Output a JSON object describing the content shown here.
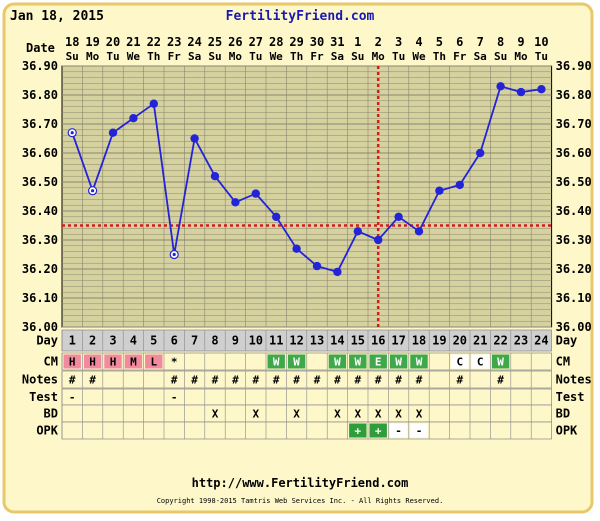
{
  "header": {
    "date": "Jan 18, 2015",
    "site": "FertilityFriend.com"
  },
  "footer": {
    "url": "http://www.FertilityFriend.com",
    "copyright": "Copyright 1998-2015 Tamtris Web Services Inc. - All Rights Reserved."
  },
  "labels": {
    "date": "Date",
    "day": "Day",
    "cm": "CM",
    "notes": "Notes",
    "test": "Test",
    "bd": "BD",
    "opk": "OPK"
  },
  "colors": {
    "background": "#fdf7c9",
    "frame_border": "#e8c96a",
    "grid_fill": "#d6d2a0",
    "grid_line": "#8a8670",
    "temp_line": "#2323d8",
    "coverline": "#d01e1e",
    "day_row": "#cfcfcf",
    "cm_bleed": "#f08a9c",
    "cm_watery": "#3fa84b",
    "opk_positive": "#2e9e3a"
  },
  "chart_data": {
    "type": "line",
    "title": "",
    "ylabel": "",
    "xlabel": "",
    "ylim": [
      36.0,
      36.9
    ],
    "y_ticks": [
      "36.00",
      "36.10",
      "36.20",
      "36.30",
      "36.40",
      "36.50",
      "36.60",
      "36.70",
      "36.80",
      "36.90"
    ],
    "dates": [
      "18",
      "19",
      "20",
      "21",
      "22",
      "23",
      "24",
      "25",
      "26",
      "27",
      "28",
      "29",
      "30",
      "31",
      "1",
      "2",
      "3",
      "4",
      "5",
      "6",
      "7",
      "8",
      "9",
      "10"
    ],
    "weekdays": [
      "Su",
      "Mo",
      "Tu",
      "We",
      "Th",
      "Fr",
      "Sa",
      "Su",
      "Mo",
      "Tu",
      "We",
      "Th",
      "Fr",
      "Sa",
      "Su",
      "Mo",
      "Tu",
      "We",
      "Th",
      "Fr",
      "Sa",
      "Su",
      "Mo",
      "Tu"
    ],
    "cycle_days": [
      "1",
      "2",
      "3",
      "4",
      "5",
      "6",
      "7",
      "8",
      "9",
      "10",
      "11",
      "12",
      "13",
      "14",
      "15",
      "16",
      "17",
      "18",
      "19",
      "20",
      "21",
      "22",
      "23",
      "24"
    ],
    "temperatures": [
      36.67,
      36.47,
      36.67,
      36.72,
      36.77,
      36.25,
      36.65,
      36.52,
      36.43,
      36.46,
      36.38,
      36.27,
      36.21,
      36.19,
      36.33,
      36.3,
      36.38,
      36.33,
      36.47,
      36.49,
      36.6,
      36.83,
      36.81,
      36.82
    ],
    "discarded_days": [
      1,
      2,
      6
    ],
    "coverline": 36.35,
    "ovulation_day": 16,
    "grid": true,
    "cm": [
      "H",
      "H",
      "H",
      "M",
      "L",
      "*",
      "",
      "",
      "",
      "",
      "W",
      "W",
      "",
      "W",
      "W",
      "E",
      "W",
      "W",
      "",
      "C",
      "C",
      "W",
      "",
      ""
    ],
    "notes": [
      "#",
      "#",
      "",
      "",
      "",
      "#",
      "#",
      "#",
      "#",
      "#",
      "#",
      "#",
      "#",
      "#",
      "#",
      "#",
      "#",
      "#",
      "",
      "#",
      "",
      "#",
      "",
      ""
    ],
    "test": [
      "-",
      "",
      "",
      "",
      "",
      "-",
      "",
      "",
      "",
      "",
      "",
      "",
      "",
      "",
      "",
      "",
      "",
      "",
      "",
      "",
      "",
      "",
      "",
      ""
    ],
    "bd": [
      "",
      "",
      "",
      "",
      "",
      "",
      "",
      "X",
      "",
      "X",
      "",
      "X",
      "",
      "X",
      "X",
      "X",
      "X",
      "X",
      "",
      "",
      "",
      "",
      "",
      ""
    ],
    "opk": [
      "",
      "",
      "",
      "",
      "",
      "",
      "",
      "",
      "",
      "",
      "",
      "",
      "",
      "",
      "+",
      "+",
      "-",
      "-",
      "",
      "",
      "",
      "",
      "",
      ""
    ]
  }
}
